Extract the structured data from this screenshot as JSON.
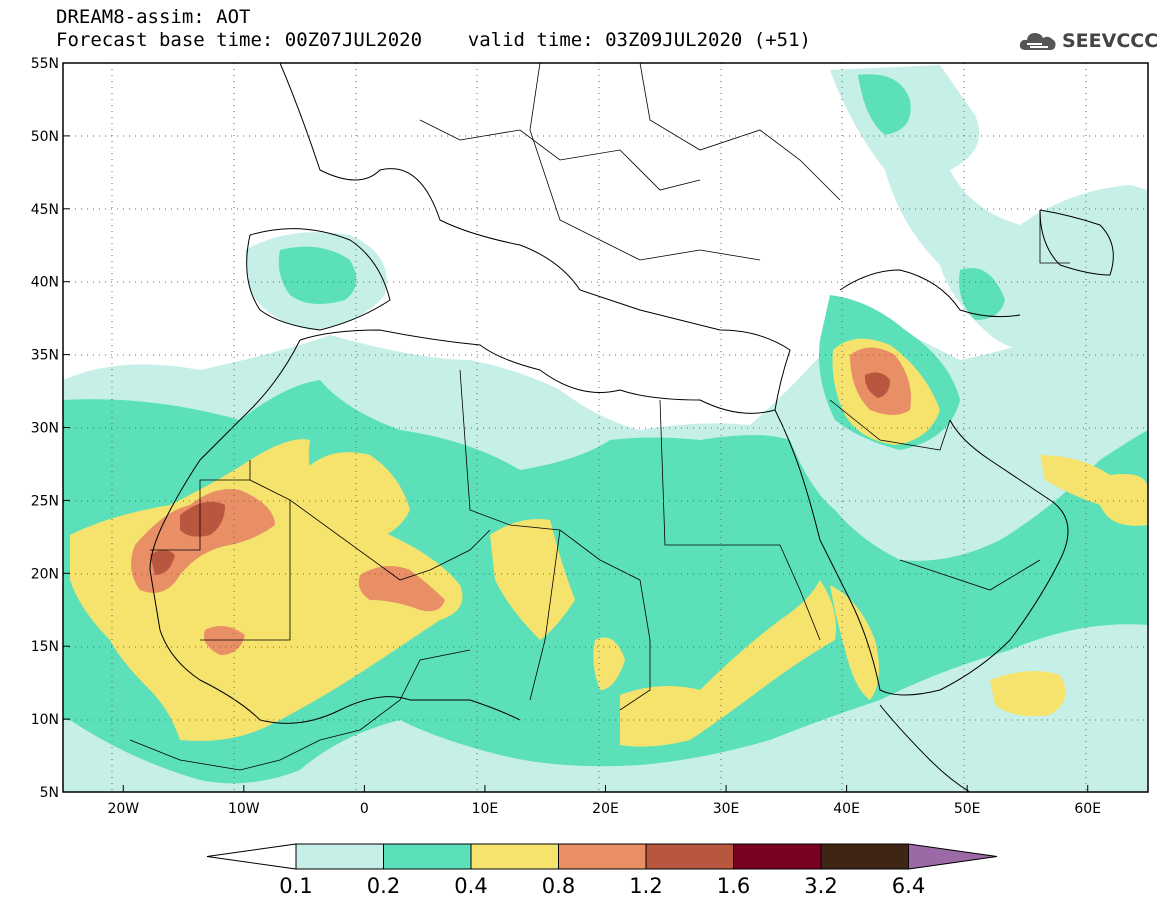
{
  "header": {
    "title_line1": "DREAM8-assim: AOT",
    "title_line2": "Forecast base time: 00Z07JUL2020    valid time: 03Z09JUL2020 (+51)"
  },
  "logo": {
    "text": "SEEVCCC",
    "icon": "cloud-icon",
    "color": "#555555"
  },
  "map": {
    "lon_range": [
      -25,
      65
    ],
    "lat_range": [
      5,
      55
    ],
    "grid": "dotted",
    "lat_ticks": [
      {
        "value": 55,
        "label": "55N"
      },
      {
        "value": 50,
        "label": "50N"
      },
      {
        "value": 45,
        "label": "45N"
      },
      {
        "value": 40,
        "label": "40N"
      },
      {
        "value": 35,
        "label": "35N"
      },
      {
        "value": 30,
        "label": "30N"
      },
      {
        "value": 25,
        "label": "25N"
      },
      {
        "value": 20,
        "label": "20N"
      },
      {
        "value": 15,
        "label": "15N"
      },
      {
        "value": 10,
        "label": "10N"
      },
      {
        "value": 5,
        "label": "5N"
      }
    ],
    "lon_ticks": [
      {
        "value": -20,
        "label": "20W"
      },
      {
        "value": -10,
        "label": "10W"
      },
      {
        "value": 0,
        "label": "0"
      },
      {
        "value": 10,
        "label": "10E"
      },
      {
        "value": 20,
        "label": "20E"
      },
      {
        "value": 30,
        "label": "30E"
      },
      {
        "value": 40,
        "label": "40E"
      },
      {
        "value": 50,
        "label": "50E"
      },
      {
        "value": 60,
        "label": "60E"
      }
    ]
  },
  "colorbar": {
    "colors": [
      "#ffffff",
      "#c6efe8",
      "#5ce0b9",
      "#f5e36e",
      "#e88f66",
      "#b8563f",
      "#7a0022",
      "#3e2514",
      "#9b6aa6"
    ],
    "labels": [
      "0.1",
      "0.2",
      "0.4",
      "0.8",
      "1.2",
      "1.6",
      "3.2",
      "6.4"
    ]
  }
}
